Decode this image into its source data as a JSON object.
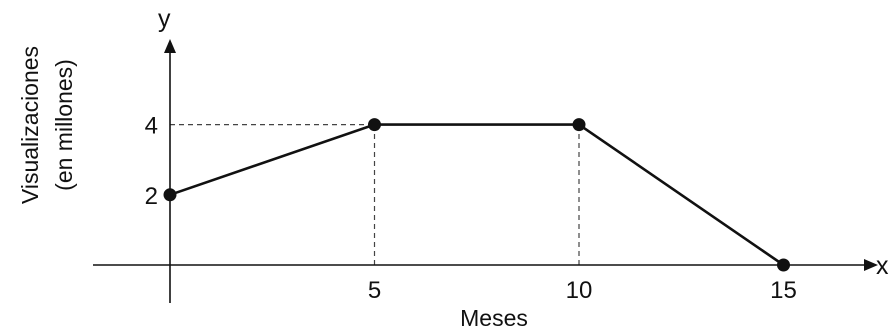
{
  "chart_data": {
    "type": "line",
    "x": [
      0,
      5,
      10,
      15
    ],
    "y": [
      2,
      4,
      4,
      0
    ],
    "series": [
      {
        "values": [
          2,
          4,
          4,
          0
        ]
      }
    ],
    "axis_letters": {
      "x": "x",
      "y": "y"
    },
    "xlabel": "Meses",
    "ylabel_lines": [
      "Visualizaciones",
      "(en millones)"
    ],
    "x_ticks": [
      {
        "value": 5,
        "label": "5"
      },
      {
        "value": 10,
        "label": "10"
      },
      {
        "value": 15,
        "label": "15"
      }
    ],
    "y_ticks": [
      {
        "value": 2,
        "label": "2"
      },
      {
        "value": 4,
        "label": "4"
      }
    ],
    "guide_lines": [
      {
        "from": "y-axis",
        "to_point": [
          5,
          4
        ]
      },
      {
        "from": "x-axis",
        "to_point": [
          5,
          4
        ]
      },
      {
        "from": "x-axis",
        "to_point": [
          10,
          4
        ]
      }
    ],
    "grid": false,
    "legend": "none",
    "colors": {
      "line": "#111111",
      "guide": "#444444"
    }
  }
}
